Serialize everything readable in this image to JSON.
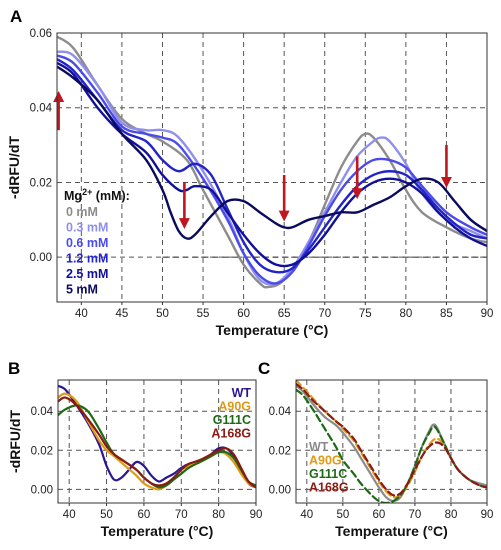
{
  "chart_data": [
    {
      "panel": "A",
      "type": "line",
      "ylabel": "-dRFU/dT",
      "xlabel": "Temperature (°C)",
      "xlim": [
        37,
        90
      ],
      "ylim": [
        -0.012,
        0.06
      ],
      "xticks": [
        40,
        45,
        50,
        55,
        60,
        65,
        70,
        75,
        80,
        85,
        90
      ],
      "yticks": [
        0.0,
        0.02,
        0.04,
        0.06
      ],
      "ytick_labels": [
        "0.00",
        "0.02",
        "0.04",
        "0.06"
      ],
      "grid": true,
      "legend": {
        "title": "Mg",
        "title_sup": "2+",
        "title_suffix": " (mM):",
        "placement": "left-middle"
      },
      "series": [
        {
          "name": "0 mM",
          "color": "#8c8c8c",
          "x": [
            37,
            39,
            42,
            45,
            48,
            50,
            53,
            55,
            58,
            60,
            62,
            63,
            65,
            68,
            70,
            72,
            74,
            75,
            76,
            78,
            80,
            82,
            85,
            88,
            90
          ],
          "y": [
            0.059,
            0.056,
            0.046,
            0.037,
            0.033,
            0.031,
            0.026,
            0.018,
            0.006,
            -0.002,
            -0.007,
            -0.008,
            -0.006,
            0.004,
            0.014,
            0.024,
            0.031,
            0.033,
            0.032,
            0.026,
            0.018,
            0.012,
            0.008,
            0.005,
            0.004
          ]
        },
        {
          "name": "0.3 mM",
          "color": "#8f8ff0",
          "x": [
            37,
            39,
            42,
            45,
            48,
            50,
            52,
            55,
            58,
            60,
            62,
            64,
            66,
            68,
            70,
            72,
            74,
            76,
            77,
            78,
            80,
            82,
            85,
            88,
            90
          ],
          "y": [
            0.055,
            0.054,
            0.046,
            0.036,
            0.034,
            0.034,
            0.032,
            0.023,
            0.011,
            0.001,
            -0.006,
            -0.007,
            -0.003,
            0.004,
            0.012,
            0.02,
            0.027,
            0.031,
            0.032,
            0.031,
            0.025,
            0.017,
            0.01,
            0.007,
            0.005
          ]
        },
        {
          "name": "0.6 mM",
          "color": "#4b4bea",
          "x": [
            37,
            39,
            42,
            45,
            48,
            50,
            52,
            55,
            58,
            60,
            62,
            64,
            66,
            68,
            70,
            72,
            74,
            76,
            78,
            80,
            82,
            85,
            88,
            90
          ],
          "y": [
            0.054,
            0.052,
            0.044,
            0.035,
            0.033,
            0.032,
            0.03,
            0.021,
            0.01,
            0.001,
            -0.005,
            -0.007,
            -0.004,
            0.003,
            0.011,
            0.018,
            0.023,
            0.026,
            0.026,
            0.024,
            0.019,
            0.012,
            0.008,
            0.006
          ]
        },
        {
          "name": "1.2 mM",
          "color": "#2323c8",
          "x": [
            37,
            39,
            42,
            45,
            48,
            50,
            52,
            54,
            56,
            58,
            60,
            62,
            64,
            66,
            68,
            70,
            72,
            74,
            76,
            78,
            80,
            82,
            84,
            86,
            88,
            90
          ],
          "y": [
            0.053,
            0.05,
            0.042,
            0.034,
            0.031,
            0.026,
            0.023,
            0.025,
            0.022,
            0.013,
            0.004,
            -0.002,
            -0.004,
            -0.003,
            0.002,
            0.008,
            0.014,
            0.019,
            0.022,
            0.023,
            0.022,
            0.018,
            0.013,
            0.009,
            0.006,
            0.005
          ]
        },
        {
          "name": "2.5 mM",
          "color": "#10109a",
          "x": [
            37,
            39,
            42,
            45,
            48,
            50,
            52,
            53,
            54,
            56,
            58,
            60,
            62,
            64,
            66,
            68,
            70,
            72,
            74,
            76,
            78,
            80,
            82,
            84,
            86,
            88,
            90
          ],
          "y": [
            0.052,
            0.049,
            0.04,
            0.033,
            0.028,
            0.022,
            0.018,
            0.018,
            0.019,
            0.018,
            0.012,
            0.006,
            0.001,
            -0.002,
            -0.002,
            0.001,
            0.006,
            0.012,
            0.017,
            0.02,
            0.021,
            0.02,
            0.017,
            0.012,
            0.008,
            0.005,
            0.003
          ]
        },
        {
          "name": "5 mM",
          "color": "#0a0a5e",
          "x": [
            37,
            39,
            42,
            45,
            48,
            50,
            51,
            52,
            53,
            54,
            56,
            58,
            60,
            62,
            64,
            65,
            66,
            68,
            70,
            72,
            74,
            76,
            78,
            80,
            82,
            84,
            86,
            88,
            90
          ],
          "y": [
            0.051,
            0.048,
            0.042,
            0.033,
            0.026,
            0.018,
            0.012,
            0.007,
            0.005,
            0.006,
            0.011,
            0.015,
            0.015,
            0.012,
            0.009,
            0.008,
            0.008,
            0.01,
            0.011,
            0.012,
            0.012,
            0.014,
            0.016,
            0.019,
            0.021,
            0.02,
            0.015,
            0.01,
            0.007
          ]
        }
      ],
      "arrows": [
        {
          "x": 37.2,
          "y_from": 0.034,
          "y_to": 0.043,
          "direction": "up"
        },
        {
          "x": 52.7,
          "y_from": 0.02,
          "y_to": 0.009,
          "direction": "down"
        },
        {
          "x": 65,
          "y_from": 0.022,
          "y_to": 0.011,
          "direction": "down"
        },
        {
          "x": 74,
          "y_from": 0.027,
          "y_to": 0.017,
          "direction": "down"
        },
        {
          "x": 85,
          "y_from": 0.03,
          "y_to": 0.02,
          "direction": "down"
        }
      ],
      "arrow_color": "#c0161e",
      "baseline": {
        "y": 0,
        "x_from": 50,
        "x_to": 90
      }
    },
    {
      "panel": "B",
      "type": "line",
      "ylabel": "-dRFU/dT",
      "xlabel": "Temperature (°C)",
      "xlim": [
        37,
        90
      ],
      "ylim": [
        -0.007,
        0.056
      ],
      "xticks": [
        40,
        50,
        60,
        70,
        80,
        90
      ],
      "yticks": [
        0.0,
        0.02,
        0.04
      ],
      "ytick_labels": [
        "0.00",
        "0.02",
        "0.04"
      ],
      "grid": true,
      "legend": {
        "placement": "top-right"
      },
      "series": [
        {
          "name": "WT",
          "color": "#2a1890",
          "x": [
            37,
            39,
            42,
            45,
            48,
            50,
            52,
            54,
            56,
            58,
            60,
            62,
            64,
            66,
            68,
            70,
            72,
            74,
            76,
            78,
            80,
            82,
            84,
            86,
            88,
            90
          ],
          "y": [
            0.053,
            0.051,
            0.043,
            0.034,
            0.023,
            0.012,
            0.005,
            0.006,
            0.01,
            0.014,
            0.012,
            0.007,
            0.004,
            0.006,
            0.008,
            0.011,
            0.013,
            0.014,
            0.015,
            0.018,
            0.021,
            0.021,
            0.017,
            0.01,
            0.003,
            0.001
          ]
        },
        {
          "name": "A90G",
          "color": "#e19a16",
          "x": [
            37,
            39,
            42,
            45,
            48,
            50,
            52,
            55,
            58,
            60,
            62,
            64,
            66,
            68,
            70,
            72,
            75,
            78,
            80,
            82,
            84,
            86,
            88,
            90
          ],
          "y": [
            0.047,
            0.049,
            0.045,
            0.035,
            0.025,
            0.02,
            0.017,
            0.012,
            0.007,
            0.003,
            0.001,
            0.0,
            0.002,
            0.006,
            0.01,
            0.012,
            0.014,
            0.017,
            0.019,
            0.018,
            0.014,
            0.008,
            0.003,
            0.001
          ]
        },
        {
          "name": "G111C",
          "color": "#1e6a14",
          "x": [
            37,
            39,
            42,
            45,
            48,
            50,
            52,
            55,
            58,
            60,
            62,
            64,
            66,
            68,
            70,
            72,
            75,
            78,
            80,
            82,
            84,
            86,
            88,
            90
          ],
          "y": [
            0.038,
            0.041,
            0.043,
            0.04,
            0.031,
            0.024,
            0.018,
            0.014,
            0.01,
            0.006,
            0.003,
            0.001,
            0.002,
            0.005,
            0.008,
            0.011,
            0.014,
            0.017,
            0.019,
            0.019,
            0.016,
            0.01,
            0.004,
            0.002
          ]
        },
        {
          "name": "A168G",
          "color": "#8a1a14",
          "x": [
            37,
            39,
            42,
            45,
            48,
            50,
            52,
            55,
            58,
            60,
            62,
            64,
            66,
            68,
            70,
            72,
            75,
            78,
            80,
            82,
            84,
            86,
            88,
            90
          ],
          "y": [
            0.045,
            0.047,
            0.043,
            0.036,
            0.028,
            0.022,
            0.018,
            0.014,
            0.01,
            0.006,
            0.003,
            0.002,
            0.003,
            0.006,
            0.01,
            0.013,
            0.015,
            0.018,
            0.02,
            0.021,
            0.018,
            0.011,
            0.004,
            0.001
          ]
        }
      ]
    },
    {
      "panel": "C",
      "type": "line",
      "xlabel": "Temperature (°C)",
      "xlim": [
        37,
        90
      ],
      "ylim": [
        -0.007,
        0.056
      ],
      "xticks": [
        40,
        50,
        60,
        70,
        80,
        90
      ],
      "yticks": [
        0.0,
        0.02,
        0.04
      ],
      "ytick_labels": [
        "0.00",
        "0.02",
        "0.04"
      ],
      "grid": true,
      "legend": {
        "placement": "center-left"
      },
      "series": [
        {
          "name": "WT",
          "color": "#8c8c8c",
          "dashed": false,
          "x": [
            37,
            39,
            42,
            45,
            48,
            50,
            53,
            55,
            58,
            60,
            62,
            64,
            66,
            68,
            70,
            72,
            74,
            75,
            76,
            78,
            80,
            82,
            85,
            88,
            90
          ],
          "y": [
            0.053,
            0.05,
            0.043,
            0.037,
            0.033,
            0.029,
            0.022,
            0.016,
            0.007,
            0.001,
            -0.004,
            -0.006,
            -0.004,
            0.003,
            0.012,
            0.022,
            0.03,
            0.033,
            0.032,
            0.024,
            0.016,
            0.01,
            0.005,
            0.003,
            0.002
          ]
        },
        {
          "name": "A90G",
          "color": "#e19a16",
          "dashed": true,
          "x": [
            37,
            39,
            42,
            45,
            48,
            50,
            53,
            55,
            58,
            60,
            62,
            64,
            66,
            68,
            70,
            72,
            74,
            76,
            78,
            80,
            82,
            85,
            88,
            90
          ],
          "y": [
            0.056,
            0.052,
            0.046,
            0.04,
            0.035,
            0.031,
            0.025,
            0.019,
            0.01,
            0.004,
            -0.001,
            -0.004,
            -0.003,
            0.002,
            0.009,
            0.017,
            0.023,
            0.026,
            0.023,
            0.016,
            0.01,
            0.005,
            0.002,
            0.001
          ]
        },
        {
          "name": "G111C",
          "color": "#1e6a14",
          "dashed": true,
          "x": [
            37,
            39,
            42,
            45,
            48,
            50,
            53,
            55,
            58,
            60,
            62,
            64,
            66,
            68,
            70,
            72,
            74,
            75,
            76,
            78,
            80,
            82,
            85,
            88,
            90
          ],
          "y": [
            0.051,
            0.048,
            0.04,
            0.031,
            0.022,
            0.015,
            0.008,
            0.003,
            -0.003,
            -0.006,
            -0.007,
            -0.006,
            -0.003,
            0.003,
            0.012,
            0.022,
            0.029,
            0.032,
            0.031,
            0.024,
            0.016,
            0.01,
            0.005,
            0.002,
            0.001
          ]
        },
        {
          "name": "A168G",
          "color": "#8a1a14",
          "dashed": true,
          "x": [
            37,
            39,
            42,
            45,
            48,
            50,
            53,
            55,
            58,
            60,
            62,
            64,
            66,
            68,
            70,
            72,
            74,
            76,
            78,
            80,
            82,
            85,
            88,
            90
          ],
          "y": [
            0.054,
            0.051,
            0.045,
            0.04,
            0.035,
            0.032,
            0.026,
            0.02,
            0.011,
            0.005,
            0.0,
            -0.003,
            -0.002,
            0.003,
            0.01,
            0.017,
            0.022,
            0.024,
            0.022,
            0.016,
            0.01,
            0.005,
            0.002,
            0.001
          ]
        }
      ]
    }
  ]
}
